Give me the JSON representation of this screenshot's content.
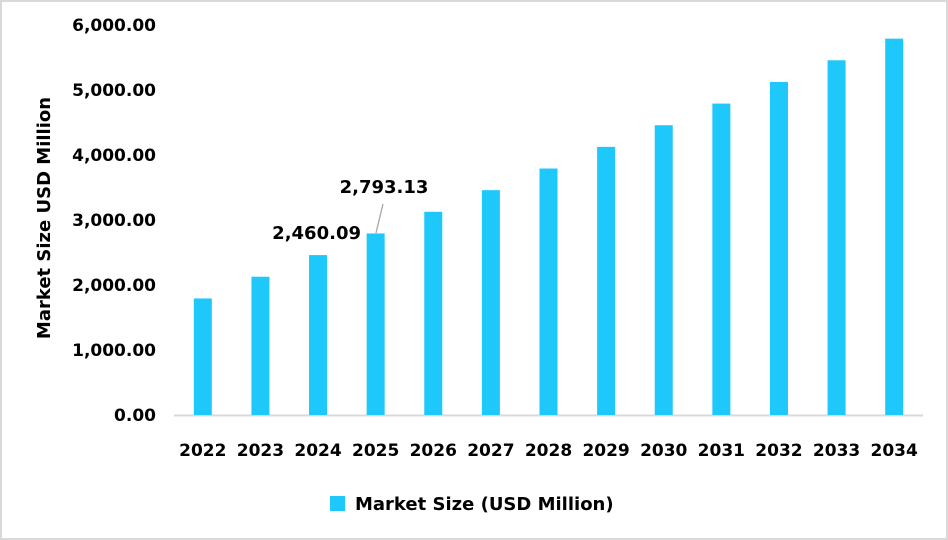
{
  "chart_data": {
    "type": "bar",
    "title": "",
    "xlabel": "",
    "ylabel": "Market Size USD Million",
    "ylim": [
      0,
      6000
    ],
    "yticks": [
      "0.00",
      "1,000.00",
      "2,000.00",
      "3,000.00",
      "4,000.00",
      "5,000.00",
      "6,000.00"
    ],
    "grid": false,
    "legend_position": "bottom",
    "categories": [
      "2022",
      "2023",
      "2024",
      "2025",
      "2026",
      "2027",
      "2028",
      "2029",
      "2030",
      "2031",
      "2032",
      "2033",
      "2034"
    ],
    "series": [
      {
        "name": "Market Size (USD Million)",
        "color": "#1EC8FA",
        "values": [
          1793,
          2127,
          2460.09,
          2793.13,
          3126,
          3459,
          3792,
          4125,
          4458,
          4791,
          5124,
          5457,
          5790
        ]
      }
    ],
    "annotations": [
      {
        "category": "2024",
        "text": "2,460.09"
      },
      {
        "category": "2025",
        "text": "2,793.13"
      }
    ]
  },
  "legend": {
    "label": "Market Size (USD Million)"
  },
  "axis": {
    "ylabel": "Market Size USD Million"
  }
}
